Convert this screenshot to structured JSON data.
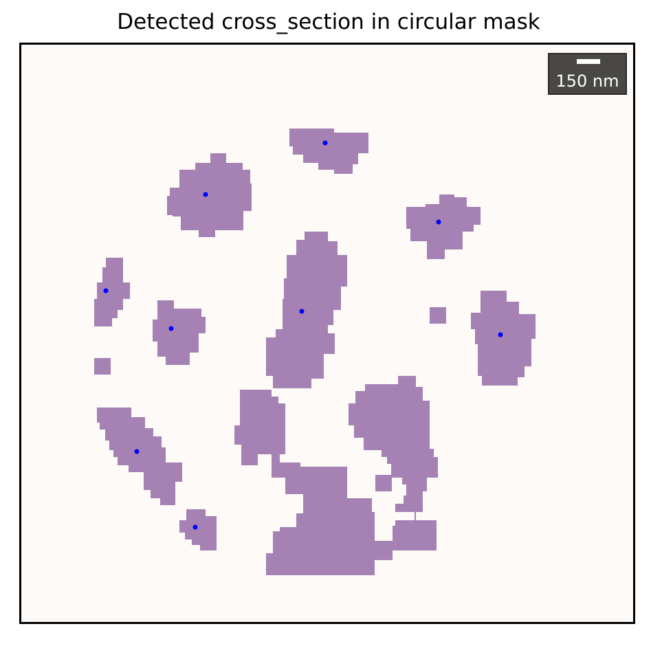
{
  "figure": {
    "title": "Detected cross_section in circular mask",
    "scale_bar_label": "150 nm"
  },
  "colors": {
    "background": "#fdfaf8",
    "region_fill": "#a581b4",
    "centroid_marker": "#0000ff",
    "scale_bar_box": "#4a4845",
    "scale_bar": "#ffffff"
  },
  "regions": [
    {
      "id": "region-top-center",
      "has_centroid": true
    },
    {
      "id": "region-upper-left",
      "has_centroid": true
    },
    {
      "id": "region-upper-right",
      "has_centroid": true
    },
    {
      "id": "region-left-thin",
      "has_centroid": true
    },
    {
      "id": "region-left-mid",
      "has_centroid": true
    },
    {
      "id": "region-center-tall",
      "has_centroid": true
    },
    {
      "id": "region-right",
      "has_centroid": true
    },
    {
      "id": "region-lower-left",
      "has_centroid": true
    },
    {
      "id": "region-bottom-left-small",
      "has_centroid": true
    },
    {
      "id": "region-small-square-left",
      "has_centroid": false
    },
    {
      "id": "region-small-square-right",
      "has_centroid": false
    },
    {
      "id": "region-large-bottom-cluster",
      "has_centroid": false
    }
  ]
}
